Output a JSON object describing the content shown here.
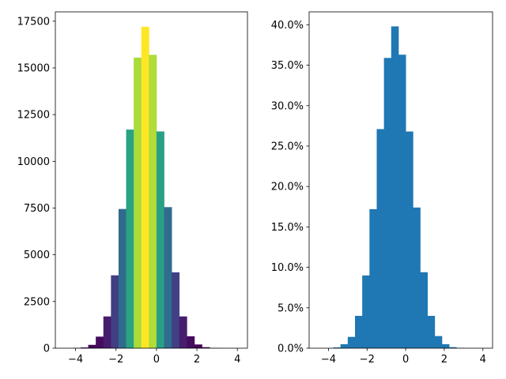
{
  "chart_data": [
    {
      "type": "bar",
      "subtype": "histogram",
      "bin_width": 0.375,
      "x_bin_centers": [
        -3.9375,
        -3.5625,
        -3.1875,
        -2.8125,
        -2.4375,
        -2.0625,
        -1.6875,
        -1.3125,
        -0.9375,
        -0.5625,
        -0.1875,
        0.1875,
        0.5625,
        0.9375,
        1.3125,
        1.6875,
        2.0625,
        2.4375,
        2.8125,
        3.1875,
        3.5625,
        3.9375
      ],
      "values": [
        15,
        40,
        180,
        620,
        1700,
        3900,
        7450,
        11700,
        15550,
        17200,
        15700,
        11600,
        7550,
        4060,
        1700,
        640,
        200,
        55,
        15,
        5,
        2,
        1
      ],
      "color_scale": "viridis by bar height",
      "xlim": [
        -5,
        4.5
      ],
      "ylim": [
        0,
        18000
      ],
      "xticks": [
        -4,
        -2,
        0,
        2,
        4
      ],
      "xtick_labels": [
        "−4",
        "−2",
        "0",
        "2",
        "4"
      ],
      "yticks": [
        0,
        2500,
        5000,
        7500,
        10000,
        12500,
        15000,
        17500
      ],
      "ytick_labels": [
        "0",
        "2500",
        "5000",
        "7500",
        "10000",
        "12500",
        "15000",
        "17500"
      ],
      "title": "",
      "xlabel": "",
      "ylabel": "",
      "grid": false
    },
    {
      "type": "bar",
      "subtype": "histogram (density)",
      "bin_width": 0.375,
      "x_bin_centers": [
        -3.9375,
        -3.5625,
        -3.1875,
        -2.8125,
        -2.4375,
        -2.0625,
        -1.6875,
        -1.3125,
        -0.9375,
        -0.5625,
        -0.1875,
        0.1875,
        0.5625,
        0.9375,
        1.3125,
        1.6875,
        2.0625,
        2.4375,
        2.8125,
        3.1875,
        3.5625,
        3.9375
      ],
      "values": [
        0.0,
        0.1,
        0.5,
        1.4,
        4.0,
        9.0,
        17.2,
        27.1,
        35.9,
        39.8,
        36.3,
        26.8,
        17.4,
        9.4,
        4.0,
        1.5,
        0.5,
        0.13,
        0.04,
        0.0,
        0.0,
        0.0
      ],
      "value_unit": "%",
      "color": "#1f77b4",
      "xlim": [
        -5,
        4.5
      ],
      "ylim": [
        0,
        41.6
      ],
      "xticks": [
        -4,
        -2,
        0,
        2,
        4
      ],
      "xtick_labels": [
        "−4",
        "−2",
        "0",
        "2",
        "4"
      ],
      "yticks": [
        0,
        5,
        10,
        15,
        20,
        25,
        30,
        35,
        40
      ],
      "ytick_labels": [
        "0.0%",
        "5.0%",
        "10.0%",
        "15.0%",
        "20.0%",
        "25.0%",
        "30.0%",
        "35.0%",
        "40.0%"
      ],
      "title": "",
      "xlabel": "",
      "ylabel": "",
      "grid": false
    }
  ]
}
